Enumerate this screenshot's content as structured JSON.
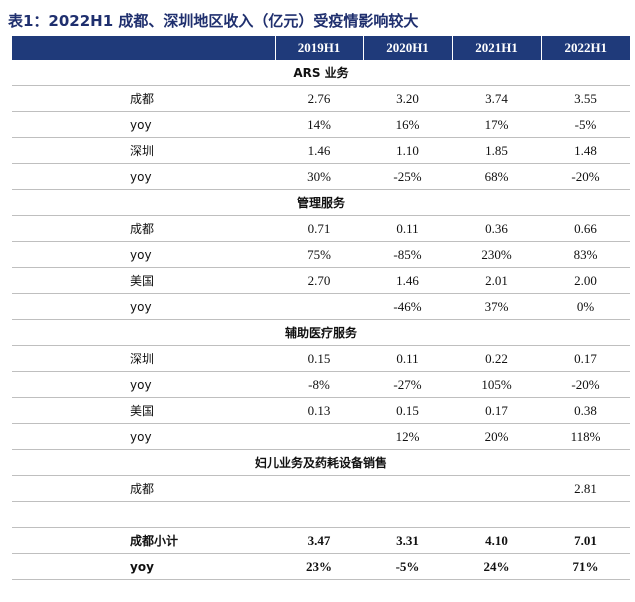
{
  "title": "表1：2022H1 成都、深圳地区收入（亿元）受疫情影响较大",
  "table": {
    "header": [
      "2019H1",
      "2020H1",
      "2021H1",
      "2022H1"
    ],
    "sections": [
      {
        "title": "ARS 业务",
        "rows": [
          {
            "label": "成都",
            "values": [
              "2.76",
              "3.20",
              "3.74",
              "3.55"
            ]
          },
          {
            "label": "yoy",
            "values": [
              "14%",
              "16%",
              "17%",
              "-5%"
            ]
          },
          {
            "label": "深圳",
            "values": [
              "1.46",
              "1.10",
              "1.85",
              "1.48"
            ]
          },
          {
            "label": "yoy",
            "values": [
              "30%",
              "-25%",
              "68%",
              "-20%"
            ]
          }
        ]
      },
      {
        "title": "管理服务",
        "rows": [
          {
            "label": "成都",
            "values": [
              "0.71",
              "0.11",
              "0.36",
              "0.66"
            ]
          },
          {
            "label": "yoy",
            "values": [
              "75%",
              "-85%",
              "230%",
              "83%"
            ]
          },
          {
            "label": "美国",
            "values": [
              "2.70",
              "1.46",
              "2.01",
              "2.00"
            ]
          },
          {
            "label": "yoy",
            "values": [
              null,
              "-46%",
              "37%",
              "0%"
            ]
          }
        ]
      },
      {
        "title": "辅助医疗服务",
        "rows": [
          {
            "label": "深圳",
            "values": [
              "0.15",
              "0.11",
              "0.22",
              "0.17"
            ]
          },
          {
            "label": "yoy",
            "values": [
              "-8%",
              "-27%",
              "105%",
              "-20%"
            ]
          },
          {
            "label": "美国",
            "values": [
              "0.13",
              "0.15",
              "0.17",
              "0.38"
            ]
          },
          {
            "label": "yoy",
            "values": [
              null,
              "12%",
              "20%",
              "118%"
            ]
          }
        ]
      },
      {
        "title": "妇儿业务及药耗设备销售",
        "rows": [
          {
            "label": "成都",
            "values": [
              null,
              null,
              null,
              "2.81"
            ]
          }
        ]
      }
    ],
    "totals": [
      {
        "label": "成都小计",
        "values": [
          "3.47",
          "3.31",
          "4.10",
          "7.01"
        ]
      },
      {
        "label": "yoy",
        "values": [
          "23%",
          "-5%",
          "24%",
          "71%"
        ]
      }
    ]
  }
}
